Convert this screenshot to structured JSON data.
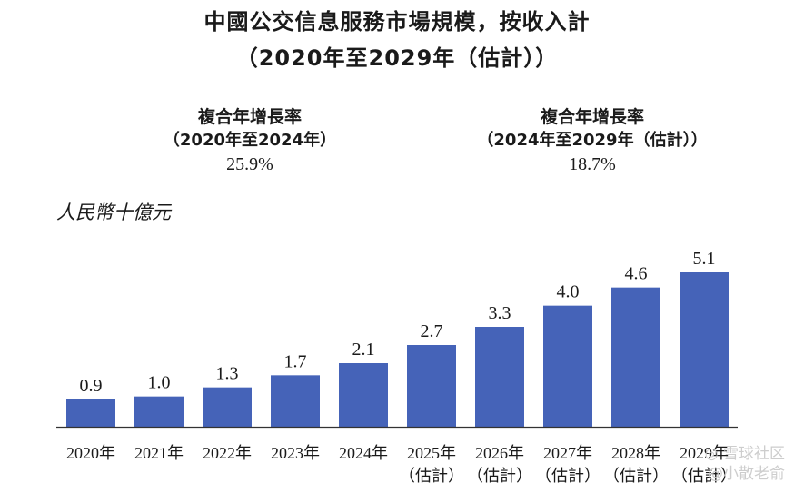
{
  "header": {
    "title_line1": "中國公交信息服務市場規模，按收入計",
    "title_line2": "（2020年至2029年（估計））"
  },
  "cagr": {
    "left": {
      "label": "複合年增長率",
      "period": "（2020年至2024年）",
      "value": "25.9%"
    },
    "right": {
      "label": "複合年增長率",
      "period": "（2024年至2029年（估計））",
      "value": "18.7%"
    }
  },
  "chart_data": {
    "type": "bar",
    "title": "中國公交信息服務市場規模，按收入計（2020年至2029年（估計））",
    "ylabel": "人民幣十億元",
    "categories": [
      "2020年",
      "2021年",
      "2022年",
      "2023年",
      "2024年",
      "2025年",
      "2026年",
      "2027年",
      "2028年",
      "2029年"
    ],
    "category_sublabels": [
      "",
      "",
      "",
      "",
      "",
      "（估計）",
      "（估計）",
      "（估計）",
      "（估計）",
      "（估計）"
    ],
    "values": [
      0.9,
      1.0,
      1.3,
      1.7,
      2.1,
      2.7,
      3.3,
      4.0,
      4.6,
      5.1
    ],
    "value_labels": [
      "0.9",
      "1.0",
      "1.3",
      "1.7",
      "2.1",
      "2.7",
      "3.3",
      "4.0",
      "4.6",
      "5.1"
    ],
    "ylim": [
      0,
      5.1
    ],
    "grid": false,
    "bar_color": "#4563b8"
  },
  "watermark": {
    "line1": "◎ 雪球社区",
    "line2": "@小散老俞"
  }
}
